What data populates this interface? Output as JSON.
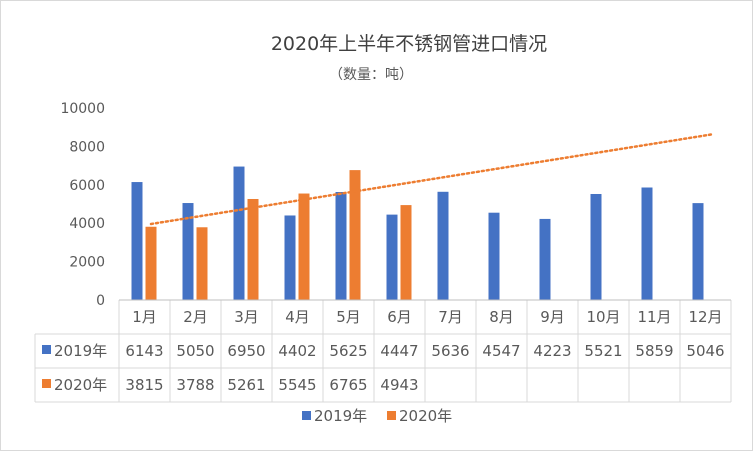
{
  "chart_data": {
    "type": "bar",
    "title": "2020年上半年不锈钢管进口情况",
    "subtitle": "（数量：吨）",
    "categories": [
      "1月",
      "2月",
      "3月",
      "4月",
      "5月",
      "6月",
      "7月",
      "8月",
      "9月",
      "10月",
      "11月",
      "12月"
    ],
    "series": [
      {
        "name": "2019年",
        "color": "#4472c4",
        "values": [
          6143,
          5050,
          6950,
          4402,
          5625,
          4447,
          5636,
          4547,
          4223,
          5521,
          5859,
          5046
        ],
        "labels": [
          "6143",
          "5050",
          "6950",
          "4402",
          "5625",
          "4447",
          "5636",
          "4547",
          "4223",
          "5521",
          "5859",
          "5046"
        ]
      },
      {
        "name": "2020年",
        "color": "#ed7d31",
        "values": [
          3815,
          3788,
          5261,
          5545,
          6765,
          4943,
          null,
          null,
          null,
          null,
          null,
          null
        ],
        "labels": [
          "3815",
          "3788",
          "5261",
          "5545",
          "6765",
          "4943",
          "",
          "",
          "",
          "",
          "",
          ""
        ]
      }
    ],
    "trendline": {
      "series": "2020年",
      "type": "linear",
      "style": "dotted",
      "color": "#ed7d31"
    },
    "y_ticks": [
      "0",
      "2000",
      "4000",
      "6000",
      "8000",
      "10000"
    ],
    "ylim": [
      0,
      10000
    ],
    "xlabel": "",
    "ylabel": "",
    "grid": false,
    "data_table": true,
    "legend": "bottom"
  }
}
